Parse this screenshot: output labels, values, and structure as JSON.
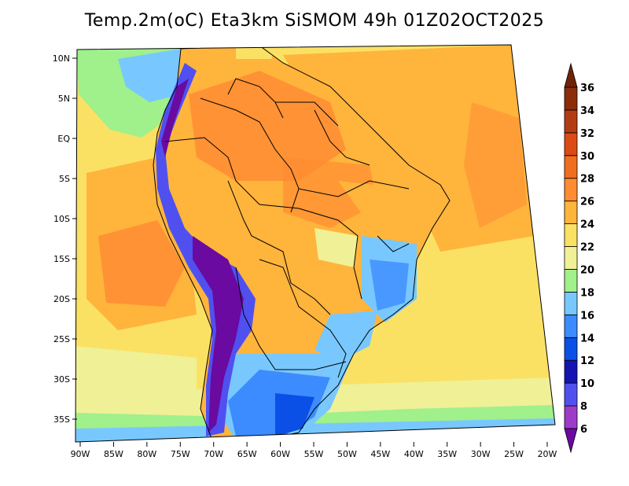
{
  "title": "Temp.2m(oC) Eta3km SiSMOM 49h 01Z02OCT2025",
  "map": {
    "lat_labels": [
      "10N",
      "5N",
      "EQ",
      "5S",
      "10S",
      "15S",
      "20S",
      "25S",
      "30S",
      "35S"
    ],
    "lat_values": [
      10,
      5,
      0,
      -5,
      -10,
      -15,
      -20,
      -25,
      -30,
      -35
    ],
    "lon_labels": [
      "90W",
      "85W",
      "80W",
      "75W",
      "70W",
      "65W",
      "60W",
      "55W",
      "50W",
      "45W",
      "40W",
      "35W",
      "30W",
      "25W",
      "20W"
    ],
    "lon_values": [
      -90,
      -85,
      -80,
      -75,
      -70,
      -65,
      -60,
      -55,
      -50,
      -45,
      -40,
      -35,
      -30,
      -25,
      -20
    ],
    "lat_range": [
      -38,
      12
    ],
    "lon_range": [
      -91,
      -19
    ]
  },
  "colorbar": {
    "labels": [
      "6",
      "8",
      "10",
      "12",
      "14",
      "16",
      "18",
      "20",
      "22",
      "24",
      "26",
      "28",
      "30",
      "32",
      "34",
      "36"
    ],
    "levels": [
      6,
      8,
      10,
      12,
      14,
      16,
      18,
      20,
      22,
      24,
      26,
      28,
      30,
      32,
      34,
      36
    ],
    "colors": [
      "#6a0aa0",
      "#9c3cc8",
      "#5050f0",
      "#1414b4",
      "#0a50e6",
      "#3c8cff",
      "#78c8ff",
      "#a0f08c",
      "#f0f096",
      "#fae164",
      "#ffb43c",
      "#ff8c32",
      "#f06e1e",
      "#dc4b14",
      "#b43c14",
      "#8c2d0a",
      "#6e2308"
    ],
    "under_color": "#6a0aa0",
    "over_color": "#6e2308"
  }
}
